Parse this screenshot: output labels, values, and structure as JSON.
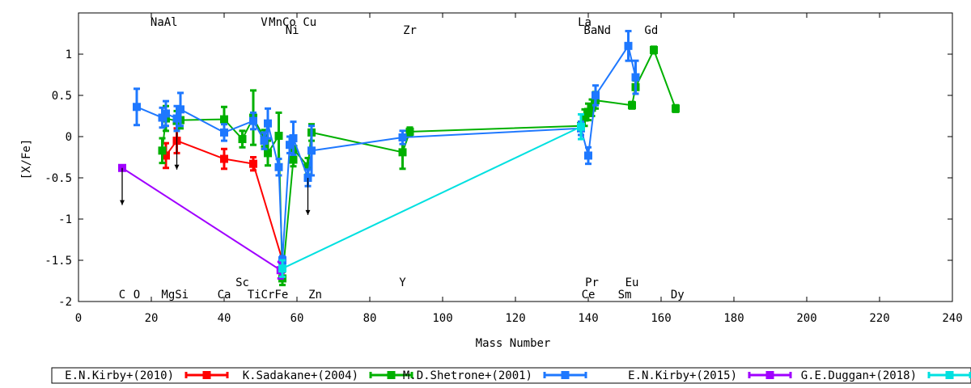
{
  "chart_data": {
    "type": "scatter",
    "xlabel": "Mass Number",
    "ylabel": "[X/Fe]",
    "xlim": [
      0,
      240
    ],
    "ylim": [
      -2,
      1.5
    ],
    "x_ticks": [
      0,
      20,
      40,
      60,
      80,
      100,
      120,
      140,
      160,
      180,
      200,
      220,
      240
    ],
    "y_ticks": [
      -2,
      -1.5,
      -1,
      -0.5,
      0,
      0.5,
      1
    ],
    "y_tick_labels": [
      "-2",
      "-1.5",
      "-1",
      "-0.5",
      "0",
      "0.5",
      "1"
    ],
    "grid": false,
    "legend_position": "bottom",
    "element_labels_top": [
      {
        "text": "NaAl",
        "x": 23.5,
        "row": 1
      },
      {
        "text": "V",
        "x": 51,
        "row": 1
      },
      {
        "text": "MnCo",
        "x": 56,
        "row": 1
      },
      {
        "text": "Cu",
        "x": 63.5,
        "row": 1
      },
      {
        "text": "Ni",
        "x": 58.7,
        "row": 2
      },
      {
        "text": "Zr",
        "x": 91,
        "row": 2
      },
      {
        "text": "La",
        "x": 139,
        "row": 1
      },
      {
        "text": "BaNd",
        "x": 142.5,
        "row": 2
      },
      {
        "text": "Gd",
        "x": 157.3,
        "row": 2
      }
    ],
    "element_labels_bottom": [
      {
        "text": "Sc",
        "x": 45,
        "row": 1
      },
      {
        "text": "Y",
        "x": 89,
        "row": 1
      },
      {
        "text": "Pr",
        "x": 141,
        "row": 1
      },
      {
        "text": "Eu",
        "x": 152,
        "row": 1
      },
      {
        "text": "C",
        "x": 12,
        "row": 2
      },
      {
        "text": "O",
        "x": 16,
        "row": 2
      },
      {
        "text": "MgSi",
        "x": 26.5,
        "row": 2
      },
      {
        "text": "Ca",
        "x": 40,
        "row": 2
      },
      {
        "text": "TiCrFe",
        "x": 52,
        "row": 2
      },
      {
        "text": "Zn",
        "x": 65,
        "row": 2
      },
      {
        "text": "Ce",
        "x": 140,
        "row": 2
      },
      {
        "text": "Sm",
        "x": 150,
        "row": 2
      },
      {
        "text": "Dy",
        "x": 164.5,
        "row": 2
      }
    ],
    "series": [
      {
        "name": "E.N.Kirby+(2010)",
        "color": "#ff0000",
        "points": [
          {
            "x": 24,
            "y": -0.23,
            "err": 0.15
          },
          {
            "x": 27,
            "y": -0.05,
            "err": 0.15
          },
          {
            "x": 40,
            "y": -0.27,
            "err": 0.12
          },
          {
            "x": 48,
            "y": -0.33,
            "err": 0.08
          },
          {
            "x": 56,
            "y": -1.5,
            "err": 0.05
          }
        ]
      },
      {
        "name": "K.Sadakane+(2004)",
        "color": "#00b000",
        "points": [
          {
            "x": 23,
            "y": -0.17,
            "err": 0.15
          },
          {
            "x": 24,
            "y": 0.22,
            "err": 0.15
          },
          {
            "x": 27,
            "y": 0.19,
            "err": 0.12
          },
          {
            "x": 28,
            "y": 0.2,
            "err": 0.1
          },
          {
            "x": 40,
            "y": 0.21,
            "err": 0.15
          },
          {
            "x": 45,
            "y": -0.03,
            "err": 0.1
          },
          {
            "x": 48,
            "y": 0.23,
            "err": 0.33
          },
          {
            "x": 51,
            "y": -0.02,
            "err": 0.1
          },
          {
            "x": 52,
            "y": -0.2,
            "err": 0.15
          },
          {
            "x": 55,
            "y": 0.01,
            "err": 0.28
          },
          {
            "x": 56,
            "y": -1.72,
            "err": 0.08
          },
          {
            "x": 59,
            "y": -0.28,
            "err": 0.08
          },
          {
            "x": 59,
            "y": -0.15,
            "err": 0.1
          },
          {
            "x": 63,
            "y": -0.36,
            "err": 0.1
          },
          {
            "x": 64,
            "y": 0.05,
            "err": 0.1
          },
          {
            "x": 89,
            "y": -0.19,
            "err": 0.2
          },
          {
            "x": 91,
            "y": 0.06,
            "err": 0.05
          },
          {
            "x": 138,
            "y": 0.13,
            "err": 0.05
          },
          {
            "x": 139,
            "y": 0.23,
            "err": 0.1
          },
          {
            "x": 140,
            "y": 0.3,
            "err": 0.1
          },
          {
            "x": 141,
            "y": 0.35,
            "err": 0.1
          },
          {
            "x": 142,
            "y": 0.44,
            "err": 0.1
          },
          {
            "x": 152,
            "y": 0.38,
            "err": 0.04
          },
          {
            "x": 153,
            "y": 0.6,
            "err": 0.08
          },
          {
            "x": 158,
            "y": 1.05,
            "err": 0.04
          },
          {
            "x": 164,
            "y": 0.34,
            "err": 0.04
          }
        ]
      },
      {
        "name": "M.D.Shetrone+(2001)",
        "color": "#1e78ff",
        "points": [
          {
            "x": 16,
            "y": 0.36,
            "err": 0.22
          },
          {
            "x": 23,
            "y": 0.23,
            "err": 0.12
          },
          {
            "x": 24,
            "y": 0.28,
            "err": 0.15
          },
          {
            "x": 27,
            "y": 0.22,
            "err": 0.15
          },
          {
            "x": 28,
            "y": 0.33,
            "err": 0.2
          },
          {
            "x": 40,
            "y": 0.05,
            "err": 0.1
          },
          {
            "x": 48,
            "y": 0.19,
            "err": 0.1
          },
          {
            "x": 51,
            "y": -0.05,
            "err": 0.1
          },
          {
            "x": 52,
            "y": 0.16,
            "err": 0.18
          },
          {
            "x": 55,
            "y": -0.37,
            "err": 0.1
          },
          {
            "x": 56,
            "y": -1.5,
            "err": 0.05
          },
          {
            "x": 58,
            "y": -0.1,
            "err": 0.1
          },
          {
            "x": 59,
            "y": -0.02,
            "err": 0.2
          },
          {
            "x": 63,
            "y": -0.5,
            "err": 0.1
          },
          {
            "x": 64,
            "y": -0.17,
            "err": 0.3
          },
          {
            "x": 89,
            "y": -0.01,
            "err": 0.08
          },
          {
            "x": 138,
            "y": 0.1,
            "err": 0.08
          },
          {
            "x": 140,
            "y": -0.23,
            "err": 0.1
          },
          {
            "x": 142,
            "y": 0.5,
            "err": 0.12
          },
          {
            "x": 151,
            "y": 1.1,
            "err": 0.18
          },
          {
            "x": 153,
            "y": 0.72,
            "err": 0.2
          }
        ]
      },
      {
        "name": "E.N.Kirby+(2015)",
        "color": "#a000ff",
        "points": [
          {
            "x": 12,
            "y": -0.38,
            "err": 0
          },
          {
            "x": 55.5,
            "y": -1.62,
            "err": 0.1
          }
        ]
      },
      {
        "name": "G.E.Duggan+(2018)",
        "color": "#00e0e0",
        "points": [
          {
            "x": 56,
            "y": -1.6,
            "err": 0.1
          },
          {
            "x": 138,
            "y": 0.12,
            "err": 0.15
          }
        ]
      }
    ],
    "upper_limits": [
      {
        "x": 12,
        "y": -0.38
      },
      {
        "x": 27,
        "y": 0.05
      },
      {
        "x": 63,
        "y": -0.5
      }
    ]
  }
}
